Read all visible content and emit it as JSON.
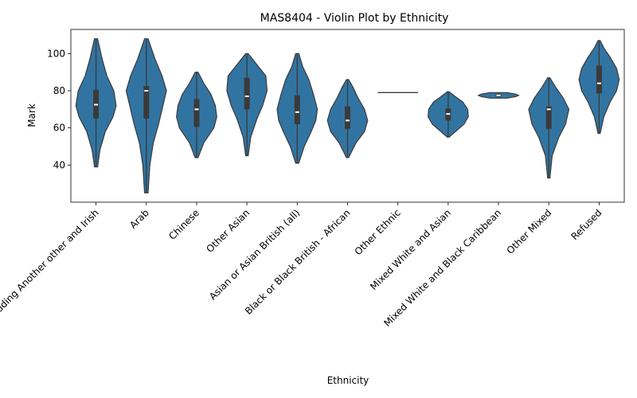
{
  "chart_data": {
    "type": "violin",
    "title": "MAS8404 - Violin Plot by Ethnicity",
    "xlabel": "Ethnicity",
    "ylabel": "Mark",
    "ylim": [
      20,
      113
    ],
    "yticks": [
      40,
      60,
      80,
      100
    ],
    "grid": false,
    "legend": "none",
    "colors": {
      "violin": "#3274a1",
      "box": "#3a3a3a",
      "median": "#ffffff"
    },
    "categories": [
      "White including Another other and Irish",
      "Arab",
      "Chinese",
      "Other Asian",
      "Asian or Asian British (all)",
      "Black or Black British - African",
      "Other Ethnic",
      "Mixed White and Asian",
      "Mixed White and Black Caribbean",
      "Other Mixed",
      "Refused"
    ],
    "violins": [
      {
        "min": 39,
        "q1": 65,
        "median": 72.5,
        "q3": 80.5,
        "max": 108,
        "density": [
          [
            39,
            0.2
          ],
          [
            48,
            0.5
          ],
          [
            58,
            1.2
          ],
          [
            66,
            2.2
          ],
          [
            72,
            2.6
          ],
          [
            80,
            2.3
          ],
          [
            88,
            1.4
          ],
          [
            97,
            0.8
          ],
          [
            108,
            0.2
          ]
        ]
      },
      {
        "min": 25,
        "q1": 65,
        "median": 80,
        "q3": 82.5,
        "max": 108,
        "density": [
          [
            25,
            0.2
          ],
          [
            40,
            0.4
          ],
          [
            52,
            0.8
          ],
          [
            62,
            1.4
          ],
          [
            70,
            1.8
          ],
          [
            80,
            2.3
          ],
          [
            88,
            1.8
          ],
          [
            97,
            1.0
          ],
          [
            108,
            0.2
          ]
        ]
      },
      {
        "min": 44,
        "q1": 60.5,
        "median": 70,
        "q3": 75.5,
        "max": 90,
        "density": [
          [
            44,
            0.2
          ],
          [
            52,
            1.0
          ],
          [
            60,
            2.4
          ],
          [
            66,
            2.8
          ],
          [
            72,
            2.6
          ],
          [
            78,
            2.0
          ],
          [
            84,
            1.0
          ],
          [
            90,
            0.2
          ]
        ]
      },
      {
        "min": 45,
        "q1": 70,
        "median": 77,
        "q3": 87,
        "max": 100,
        "density": [
          [
            45,
            0.2
          ],
          [
            55,
            0.6
          ],
          [
            65,
            1.6
          ],
          [
            72,
            2.5
          ],
          [
            80,
            3.2
          ],
          [
            88,
            3.0
          ],
          [
            94,
            1.6
          ],
          [
            100,
            0.2
          ]
        ]
      },
      {
        "min": 41,
        "q1": 62,
        "median": 68.5,
        "q3": 77.5,
        "max": 100,
        "density": [
          [
            41,
            0.2
          ],
          [
            50,
            0.9
          ],
          [
            58,
            1.8
          ],
          [
            64,
            2.4
          ],
          [
            70,
            2.6
          ],
          [
            78,
            2.1
          ],
          [
            86,
            1.5
          ],
          [
            93,
            0.7
          ],
          [
            100,
            0.2
          ]
        ]
      },
      {
        "min": 44,
        "q1": 59.5,
        "median": 64,
        "q3": 71.5,
        "max": 86,
        "density": [
          [
            44,
            0.2
          ],
          [
            52,
            1.6
          ],
          [
            58,
            3.2
          ],
          [
            64,
            3.8
          ],
          [
            70,
            3.2
          ],
          [
            76,
            2.0
          ],
          [
            82,
            1.0
          ],
          [
            86,
            0.2
          ]
        ]
      },
      {
        "min": 79,
        "q1": 79,
        "median": 79,
        "q3": 79,
        "max": 79,
        "density": [
          [
            78.6,
            22
          ],
          [
            79.4,
            22
          ]
        ]
      },
      {
        "min": 55,
        "q1": 64,
        "median": 67.5,
        "q3": 70.5,
        "max": 79.5,
        "density": [
          [
            55,
            0.3
          ],
          [
            58,
            2.4
          ],
          [
            62,
            5.2
          ],
          [
            66,
            6.6
          ],
          [
            70,
            6.4
          ],
          [
            74,
            4.8
          ],
          [
            77,
            2.2
          ],
          [
            79.5,
            0.3
          ]
        ]
      },
      {
        "min": 76,
        "q1": 76.8,
        "median": 77.5,
        "q3": 78.2,
        "max": 79,
        "density": [
          [
            76,
            14
          ],
          [
            76.8,
            28
          ],
          [
            77.5,
            33
          ],
          [
            78.2,
            28
          ],
          [
            79,
            14
          ]
        ]
      },
      {
        "min": 33,
        "q1": 59.5,
        "median": 70,
        "q3": 71.5,
        "max": 87,
        "density": [
          [
            33,
            0.2
          ],
          [
            45,
            0.6
          ],
          [
            55,
            1.8
          ],
          [
            62,
            3.0
          ],
          [
            70,
            3.6
          ],
          [
            76,
            2.6
          ],
          [
            82,
            1.2
          ],
          [
            87,
            0.2
          ]
        ]
      },
      {
        "min": 57,
        "q1": 78.5,
        "median": 84,
        "q3": 93.5,
        "max": 107,
        "density": [
          [
            57,
            0.2
          ],
          [
            66,
            0.9
          ],
          [
            74,
            2.1
          ],
          [
            80,
            3.3
          ],
          [
            86,
            3.8
          ],
          [
            92,
            3.3
          ],
          [
            98,
            2.1
          ],
          [
            103,
            0.9
          ],
          [
            107,
            0.2
          ]
        ]
      }
    ]
  }
}
